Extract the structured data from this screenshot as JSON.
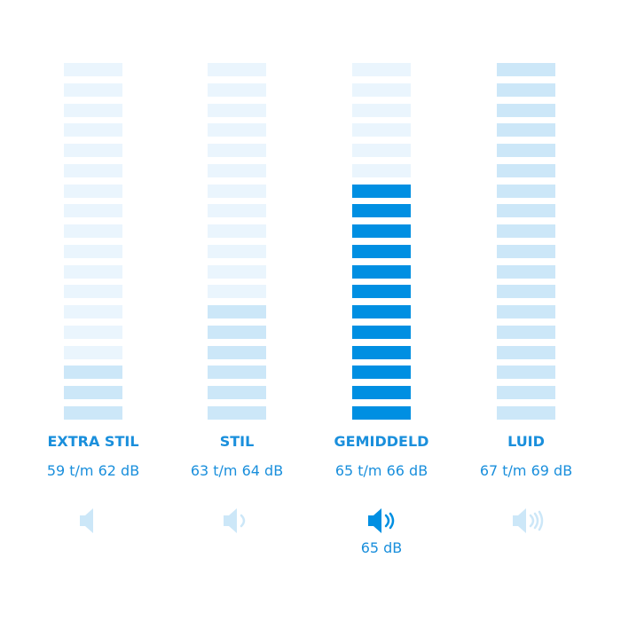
{
  "chart_data": {
    "type": "bar",
    "segments_total": 18,
    "categories": [
      "EXTRA STIL",
      "STIL",
      "GEMIDDELD",
      "LUID"
    ],
    "ranges": [
      "59 t/m 62 dB",
      "63 t/m 64 dB",
      "65 t/m 66 dB",
      "67 t/m 69 dB"
    ],
    "values": [
      3,
      6,
      12,
      18
    ],
    "highlighted": 2,
    "current_label": "65 dB",
    "icons": [
      "speaker-mute-icon",
      "speaker-low-icon",
      "speaker-medium-icon",
      "speaker-high-icon"
    ],
    "colors": {
      "empty": "#eaf5fd",
      "filled": "#cce7f8",
      "active": "#008fe2",
      "text": "#1a8fdc",
      "icon_inactive": "#cce7f8"
    }
  }
}
